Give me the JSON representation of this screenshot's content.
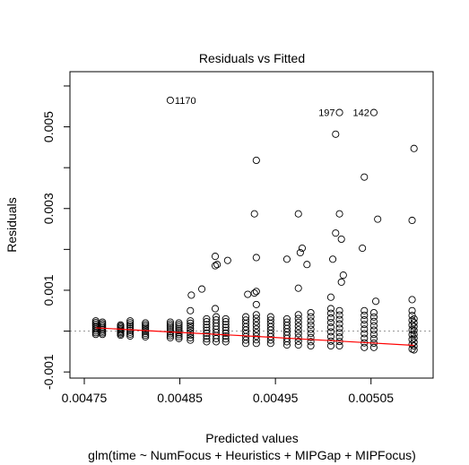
{
  "chart_data": {
    "type": "scatter",
    "title": "Residuals vs Fitted",
    "xlabel": "Predicted values",
    "subtitle": "glm(time ~ NumFocus + Heuristics + MIPGap + MIPFocus)",
    "ylabel": "Residuals",
    "xlim": [
      0.004735,
      0.005115
    ],
    "ylim": [
      -0.00115,
      0.00635
    ],
    "x_ticks": [
      0.00475,
      0.00485,
      0.00495,
      0.00505
    ],
    "x_tick_labels": [
      "0.00475",
      "0.00485",
      "0.00495",
      "0.00505"
    ],
    "y_ticks": [
      -0.001,
      0.001,
      0.003,
      0.005
    ],
    "y_tick_labels": [
      "-0.001",
      "0.001",
      "0.003",
      "0.005"
    ],
    "grid": false,
    "reference_line_y": 0,
    "clusters": [
      {
        "x": 0.004762,
        "ymin": -8e-05,
        "ymax": 0.00025
      },
      {
        "x": 0.004769,
        "ymin": -8e-05,
        "ymax": 0.00022
      },
      {
        "x": 0.004788,
        "ymin": -0.0001,
        "ymax": 0.00015
      },
      {
        "x": 0.004798,
        "ymin": -0.00012,
        "ymax": 0.00025
      },
      {
        "x": 0.004814,
        "ymin": -0.00014,
        "ymax": 0.0002
      },
      {
        "x": 0.00484,
        "ymin": -0.00016,
        "ymax": 0.00022
      },
      {
        "x": 0.004849,
        "ymin": -0.00018,
        "ymax": 0.0002
      },
      {
        "x": 0.004861,
        "ymin": -0.00022,
        "ymax": 0.00025
      },
      {
        "x": 0.004878,
        "ymin": -0.00026,
        "ymax": 0.0003
      },
      {
        "x": 0.004888,
        "ymin": -0.00026,
        "ymax": 0.00035
      },
      {
        "x": 0.004898,
        "ymin": -0.00026,
        "ymax": 0.0003
      },
      {
        "x": 0.004919,
        "ymin": -0.0003,
        "ymax": 0.00035
      },
      {
        "x": 0.00493,
        "ymin": -0.0003,
        "ymax": 0.0004
      },
      {
        "x": 0.004945,
        "ymin": -0.0003,
        "ymax": 0.00035
      },
      {
        "x": 0.004962,
        "ymin": -0.00034,
        "ymax": 0.0003
      },
      {
        "x": 0.004974,
        "ymin": -0.00034,
        "ymax": 0.0004
      },
      {
        "x": 0.004987,
        "ymin": -0.00036,
        "ymax": 0.00045
      },
      {
        "x": 0.005008,
        "ymin": -0.00036,
        "ymax": 0.00055
      },
      {
        "x": 0.005017,
        "ymin": -0.00036,
        "ymax": 0.0005
      },
      {
        "x": 0.005043,
        "ymin": -0.0004,
        "ymax": 0.0005
      },
      {
        "x": 0.005053,
        "ymin": -0.0004,
        "ymax": 0.00045
      },
      {
        "x": 0.005093,
        "ymin": -0.00044,
        "ymax": 0.0005
      },
      {
        "x": 0.005095,
        "ymin": -0.00046,
        "ymax": 0.0003
      }
    ],
    "points": [
      {
        "x": 0.00484,
        "y": 0.00565,
        "label": "1170"
      },
      {
        "x": 0.005017,
        "y": 0.00535,
        "label": "197"
      },
      {
        "x": 0.005053,
        "y": 0.00535,
        "label": "142"
      },
      {
        "x": 0.005013,
        "y": 0.00482
      },
      {
        "x": 0.005095,
        "y": 0.00447
      },
      {
        "x": 0.00493,
        "y": 0.00418
      },
      {
        "x": 0.005043,
        "y": 0.00377
      },
      {
        "x": 0.004928,
        "y": 0.00287
      },
      {
        "x": 0.004974,
        "y": 0.00287
      },
      {
        "x": 0.005017,
        "y": 0.00287
      },
      {
        "x": 0.005093,
        "y": 0.00271
      },
      {
        "x": 0.005057,
        "y": 0.00274
      },
      {
        "x": 0.005013,
        "y": 0.0024
      },
      {
        "x": 0.005019,
        "y": 0.00225
      },
      {
        "x": 0.005041,
        "y": 0.00203
      },
      {
        "x": 0.004978,
        "y": 0.00203
      },
      {
        "x": 0.004976,
        "y": 0.00192
      },
      {
        "x": 0.004887,
        "y": 0.00183
      },
      {
        "x": 0.00493,
        "y": 0.0018
      },
      {
        "x": 0.004962,
        "y": 0.00176
      },
      {
        "x": 0.00501,
        "y": 0.00176
      },
      {
        "x": 0.0049,
        "y": 0.00173
      },
      {
        "x": 0.004887,
        "y": 0.0016
      },
      {
        "x": 0.004889,
        "y": 0.00163
      },
      {
        "x": 0.004983,
        "y": 0.00163
      },
      {
        "x": 0.005021,
        "y": 0.00137
      },
      {
        "x": 0.005019,
        "y": 0.0012
      },
      {
        "x": 0.004873,
        "y": 0.00103
      },
      {
        "x": 0.004974,
        "y": 0.00105
      },
      {
        "x": 0.00493,
        "y": 0.00097
      },
      {
        "x": 0.004928,
        "y": 0.00093
      },
      {
        "x": 0.004921,
        "y": 0.0009
      },
      {
        "x": 0.004862,
        "y": 0.00088
      },
      {
        "x": 0.005008,
        "y": 0.00083
      },
      {
        "x": 0.005093,
        "y": 0.00077
      },
      {
        "x": 0.005055,
        "y": 0.00073
      },
      {
        "x": 0.00493,
        "y": 0.00065
      },
      {
        "x": 0.004887,
        "y": 0.00055
      },
      {
        "x": 0.004861,
        "y": 0.0005
      }
    ],
    "smooth_line": {
      "x": [
        0.004762,
        0.00484,
        0.00493,
        0.00502,
        0.005095
      ],
      "y": [
        8e-05,
        -2e-05,
        -0.00013,
        -0.00025,
        -0.00035
      ],
      "color": "#ff0000"
    }
  }
}
